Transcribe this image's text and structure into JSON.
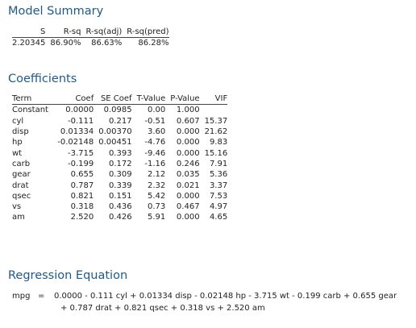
{
  "model_summary": {
    "title": "Model Summary",
    "headers": [
      "S",
      "R-sq",
      "R-sq(adj)",
      "R-sq(pred)"
    ],
    "values": [
      "2.20345",
      "86.90%",
      "86.63%",
      "86.28%"
    ]
  },
  "coefficients": {
    "title": "Coefficients",
    "headers": [
      "Term",
      "Coef",
      "SE Coef",
      "T-Value",
      "P-Value",
      "VIF"
    ],
    "rows": [
      [
        "Constant",
        "0.0000",
        "0.0985",
        "0.00",
        "1.000",
        ""
      ],
      [
        "cyl",
        "-0.111",
        "0.217",
        "-0.51",
        "0.607",
        "15.37"
      ],
      [
        "disp",
        "0.01334",
        "0.00370",
        "3.60",
        "0.000",
        "21.62"
      ],
      [
        "hp",
        "-0.02148",
        "0.00451",
        "-4.76",
        "0.000",
        "9.83"
      ],
      [
        "wt",
        "-3.715",
        "0.393",
        "-9.46",
        "0.000",
        "15.16"
      ],
      [
        "carb",
        "-0.199",
        "0.172",
        "-1.16",
        "0.246",
        "7.91"
      ],
      [
        "gear",
        "0.655",
        "0.309",
        "2.12",
        "0.035",
        "5.36"
      ],
      [
        "drat",
        "0.787",
        "0.339",
        "2.32",
        "0.021",
        "3.37"
      ],
      [
        "qsec",
        "0.821",
        "0.151",
        "5.42",
        "0.000",
        "7.53"
      ],
      [
        "vs",
        "0.318",
        "0.436",
        "0.73",
        "0.467",
        "4.97"
      ],
      [
        "am",
        "2.520",
        "0.426",
        "5.91",
        "0.000",
        "4.65"
      ]
    ]
  },
  "regression_equation": {
    "title": "Regression Equation",
    "response": "mpg",
    "equals": "=",
    "line1": "0.0000 - 0.111 cyl + 0.01334 disp - 0.02148 hp - 3.715 wt - 0.199 carb + 0.655 gear",
    "line2": "+ 0.787 drat + 0.821 qsec + 0.318 vs + 2.520 am"
  },
  "colors": {
    "heading": "#1f5a8a",
    "text": "#222222",
    "rule": "#444444"
  }
}
